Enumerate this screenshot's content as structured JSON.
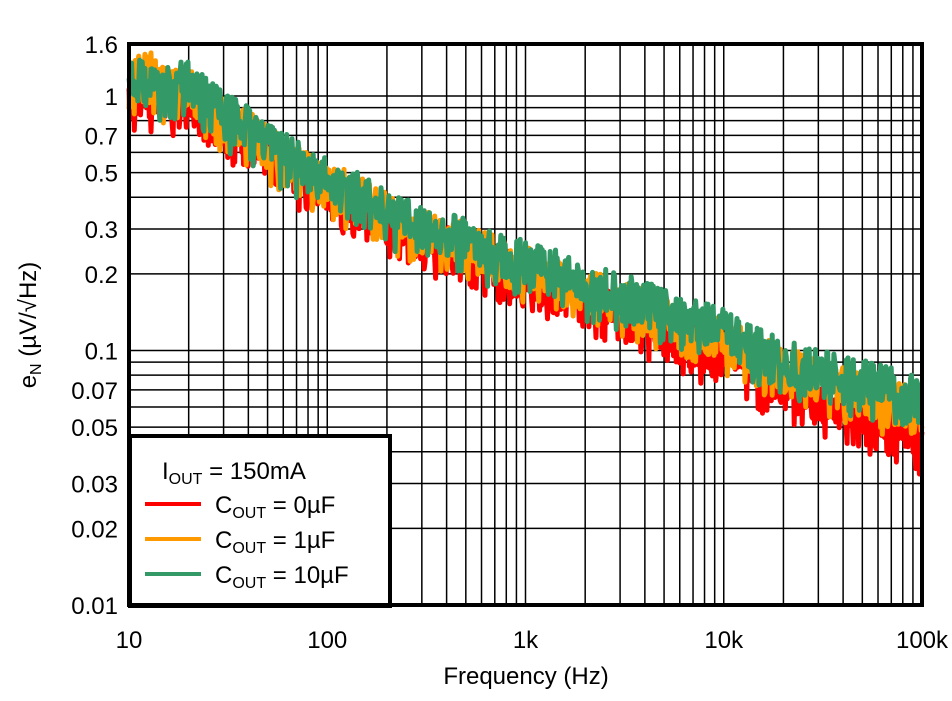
{
  "chart_data": {
    "type": "line",
    "title": "",
    "xlabel": "Frequency (Hz)",
    "ylabel": "eN (µV/√Hz)",
    "xscale": "log",
    "yscale": "log",
    "xlim": [
      10,
      100000
    ],
    "ylim": [
      0.01,
      1.6
    ],
    "grid": true,
    "legend_position": "lower left",
    "x_ticks": [
      {
        "value": 10,
        "label": "10"
      },
      {
        "value": 100,
        "label": "100"
      },
      {
        "value": 1000,
        "label": "1k"
      },
      {
        "value": 10000,
        "label": "10k"
      },
      {
        "value": 100000,
        "label": "100k"
      }
    ],
    "y_ticks": [
      {
        "value": 1.6,
        "label": "1.6"
      },
      {
        "value": 1,
        "label": "1"
      },
      {
        "value": 0.7,
        "label": "0.7"
      },
      {
        "value": 0.5,
        "label": "0.5"
      },
      {
        "value": 0.3,
        "label": "0.3"
      },
      {
        "value": 0.2,
        "label": "0.2"
      },
      {
        "value": 0.1,
        "label": "0.1"
      },
      {
        "value": 0.07,
        "label": "0.07"
      },
      {
        "value": 0.05,
        "label": "0.05"
      },
      {
        "value": 0.03,
        "label": "0.03"
      },
      {
        "value": 0.02,
        "label": "0.02"
      },
      {
        "value": 0.01,
        "label": "0.01"
      }
    ],
    "x": [
      10,
      12,
      15,
      20,
      25,
      30,
      40,
      50,
      70,
      100,
      150,
      200,
      300,
      500,
      700,
      1000,
      1500,
      2000,
      3000,
      5000,
      7000,
      10000,
      15000,
      20000,
      30000,
      50000,
      70000,
      100000
    ],
    "series": [
      {
        "name": "COUT = 0µF",
        "color": "#FF0000",
        "values": [
          0.92,
          0.98,
          0.95,
          1.0,
          0.85,
          0.78,
          0.68,
          0.58,
          0.5,
          0.42,
          0.36,
          0.31,
          0.27,
          0.24,
          0.21,
          0.19,
          0.17,
          0.15,
          0.14,
          0.12,
          0.105,
          0.095,
          0.08,
          0.072,
          0.064,
          0.055,
          0.05,
          0.045
        ]
      },
      {
        "name": "COUT = 1µF",
        "color": "#FF9900",
        "values": [
          1.05,
          1.3,
          1.05,
          1.1,
          0.9,
          0.8,
          0.72,
          0.62,
          0.53,
          0.45,
          0.39,
          0.34,
          0.29,
          0.26,
          0.23,
          0.21,
          0.19,
          0.17,
          0.155,
          0.135,
          0.12,
          0.11,
          0.095,
          0.085,
          0.076,
          0.068,
          0.062,
          0.058
        ]
      },
      {
        "name": "COUT = 10µF",
        "color": "#339966",
        "values": [
          1.2,
          1.1,
          1.05,
          1.15,
          0.95,
          0.85,
          0.75,
          0.64,
          0.55,
          0.47,
          0.4,
          0.35,
          0.3,
          0.27,
          0.24,
          0.22,
          0.2,
          0.18,
          0.165,
          0.145,
          0.13,
          0.12,
          0.1,
          0.09,
          0.082,
          0.075,
          0.07,
          0.066
        ]
      }
    ]
  },
  "legend": {
    "header_main": "I",
    "header_sub": "OUT",
    "header_rest": " = 150mA",
    "items": [
      {
        "main": "C",
        "sub": "OUT",
        "rest": " = 0µF",
        "color": "#FF0000"
      },
      {
        "main": "C",
        "sub": "OUT",
        "rest": " = 1µF",
        "color": "#FF9900"
      },
      {
        "main": "C",
        "sub": "OUT",
        "rest": " = 10µF",
        "color": "#339966"
      }
    ]
  },
  "axes": {
    "xlabel": "Frequency (Hz)",
    "ylabel_main": "e",
    "ylabel_sub": "N",
    "ylabel_rest": " (µV/√Hz)"
  }
}
